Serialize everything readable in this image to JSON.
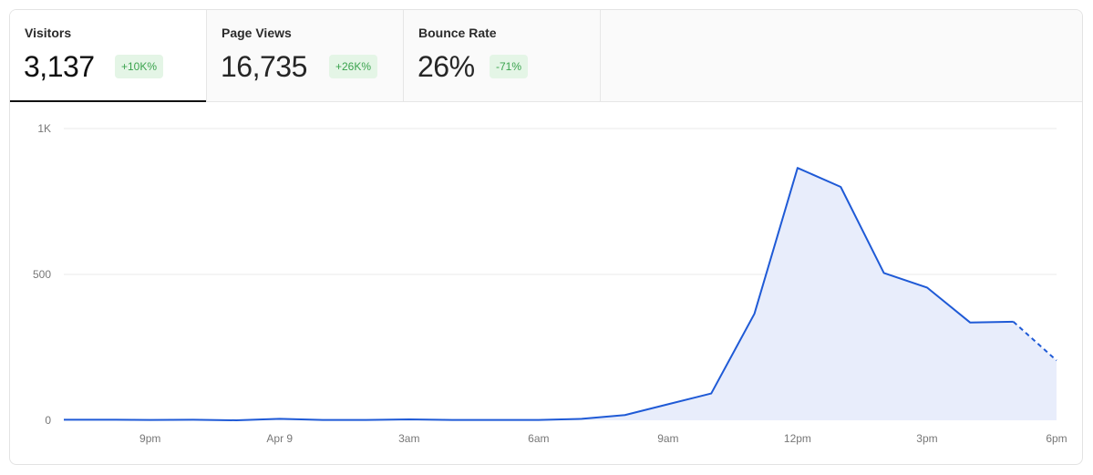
{
  "tabs": [
    {
      "label": "Visitors",
      "value": "3,137",
      "change": "+10K%"
    },
    {
      "label": "Page Views",
      "value": "16,735",
      "change": "+26K%"
    },
    {
      "label": "Bounce Rate",
      "value": "26%",
      "change": "-71%"
    }
  ],
  "colors": {
    "line": "#1f5ad6",
    "fill": "#e8edfb",
    "grid": "#e9e9e9",
    "tick": "#777777",
    "badge_bg": "#e4f5e6",
    "badge_text": "#3ba34e"
  },
  "chart_data": {
    "type": "area",
    "x": [
      "7pm",
      "8pm",
      "9pm",
      "10pm",
      "11pm",
      "Apr 9",
      "1am",
      "2am",
      "3am",
      "4am",
      "5am",
      "6am",
      "7am",
      "8am",
      "9am",
      "10am",
      "11am",
      "12pm",
      "1pm",
      "2pm",
      "3pm",
      "4pm",
      "5pm",
      "6pm"
    ],
    "series": [
      {
        "values": [
          2,
          2,
          1,
          2,
          0,
          5,
          1,
          1,
          3,
          1,
          1,
          1,
          5,
          18,
          55,
          92,
          365,
          865,
          800,
          505,
          455,
          335,
          338,
          205
        ],
        "incomplete_from_index": 22
      }
    ],
    "xticks": [
      "9pm",
      "Apr 9",
      "3am",
      "6am",
      "9am",
      "12pm",
      "3pm",
      "6pm"
    ],
    "yticks": [
      "0",
      "500",
      "1K"
    ],
    "ylim": [
      0,
      1000
    ],
    "grid": true,
    "legend": false
  }
}
